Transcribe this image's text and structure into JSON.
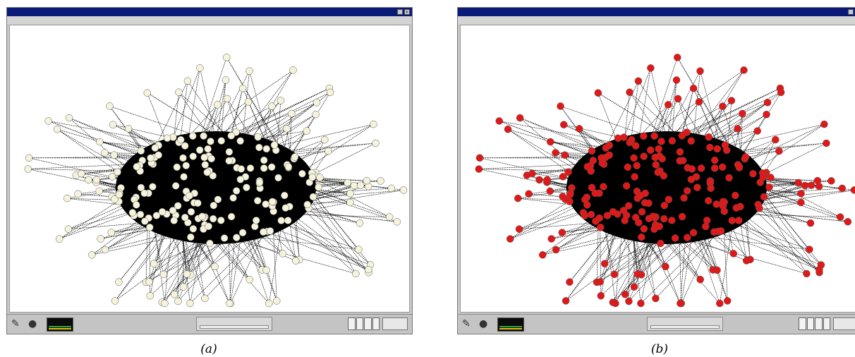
{
  "colors": {
    "node_unselected": "#f6f3dc",
    "node_selected": "#e01818",
    "edge": "#000000",
    "titlebar": "#0a1a78"
  },
  "icons": {
    "close": "×",
    "minimize": "_",
    "tool": "✎",
    "sphere": "●"
  },
  "captions": {
    "a": "(a)",
    "b": "(b)"
  }
}
